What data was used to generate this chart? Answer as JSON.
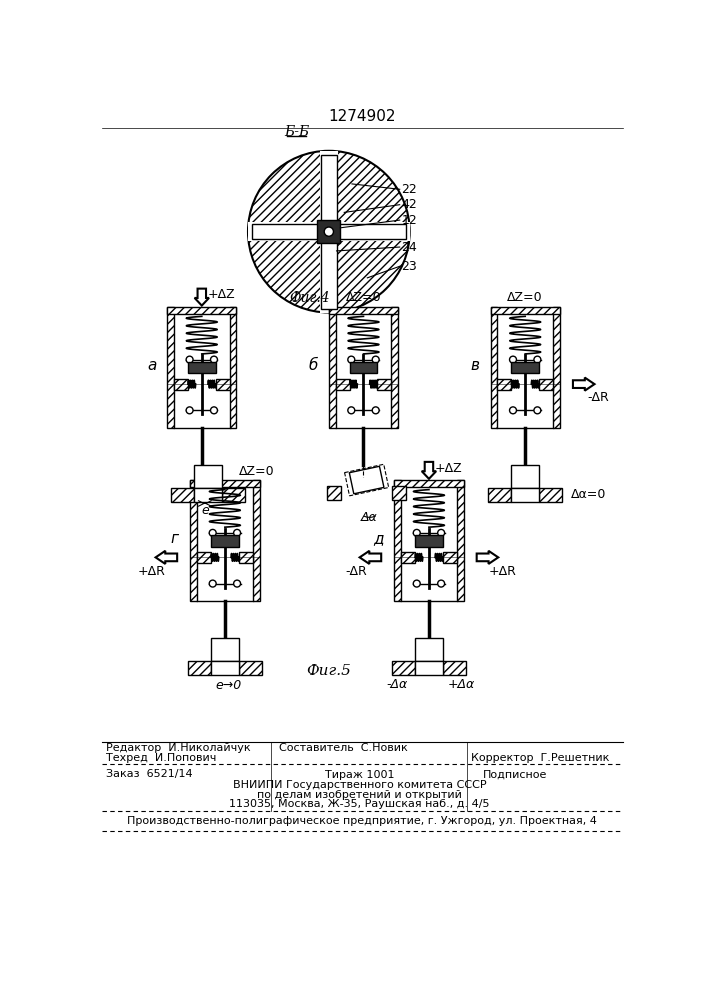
{
  "title": "1274902",
  "section_label": "Б-Б",
  "fig4_label": "Фиг.4",
  "fig5_label": "Фиг.5",
  "footer": {
    "editor": "Редактор  И.Николайчук",
    "composer": "Составитель  С.Новик",
    "techred": "Техред  И.Попович",
    "corrector": "Корректор  Г.Решетник",
    "order": "Заказ  6521/14",
    "tirazh": "Тираж 1001",
    "podpisnoe": "Подписное",
    "vniipie": "ВНИИПИ Государственного комитета СССР",
    "podelu": "по делам изобретений и открытий",
    "address": "113035, Москва, Ж-35, Раушская наб., д. 4/5",
    "print": "Производственно-полиграфическое предприятие, г. Ужгород, ул. Проектная, 4"
  }
}
